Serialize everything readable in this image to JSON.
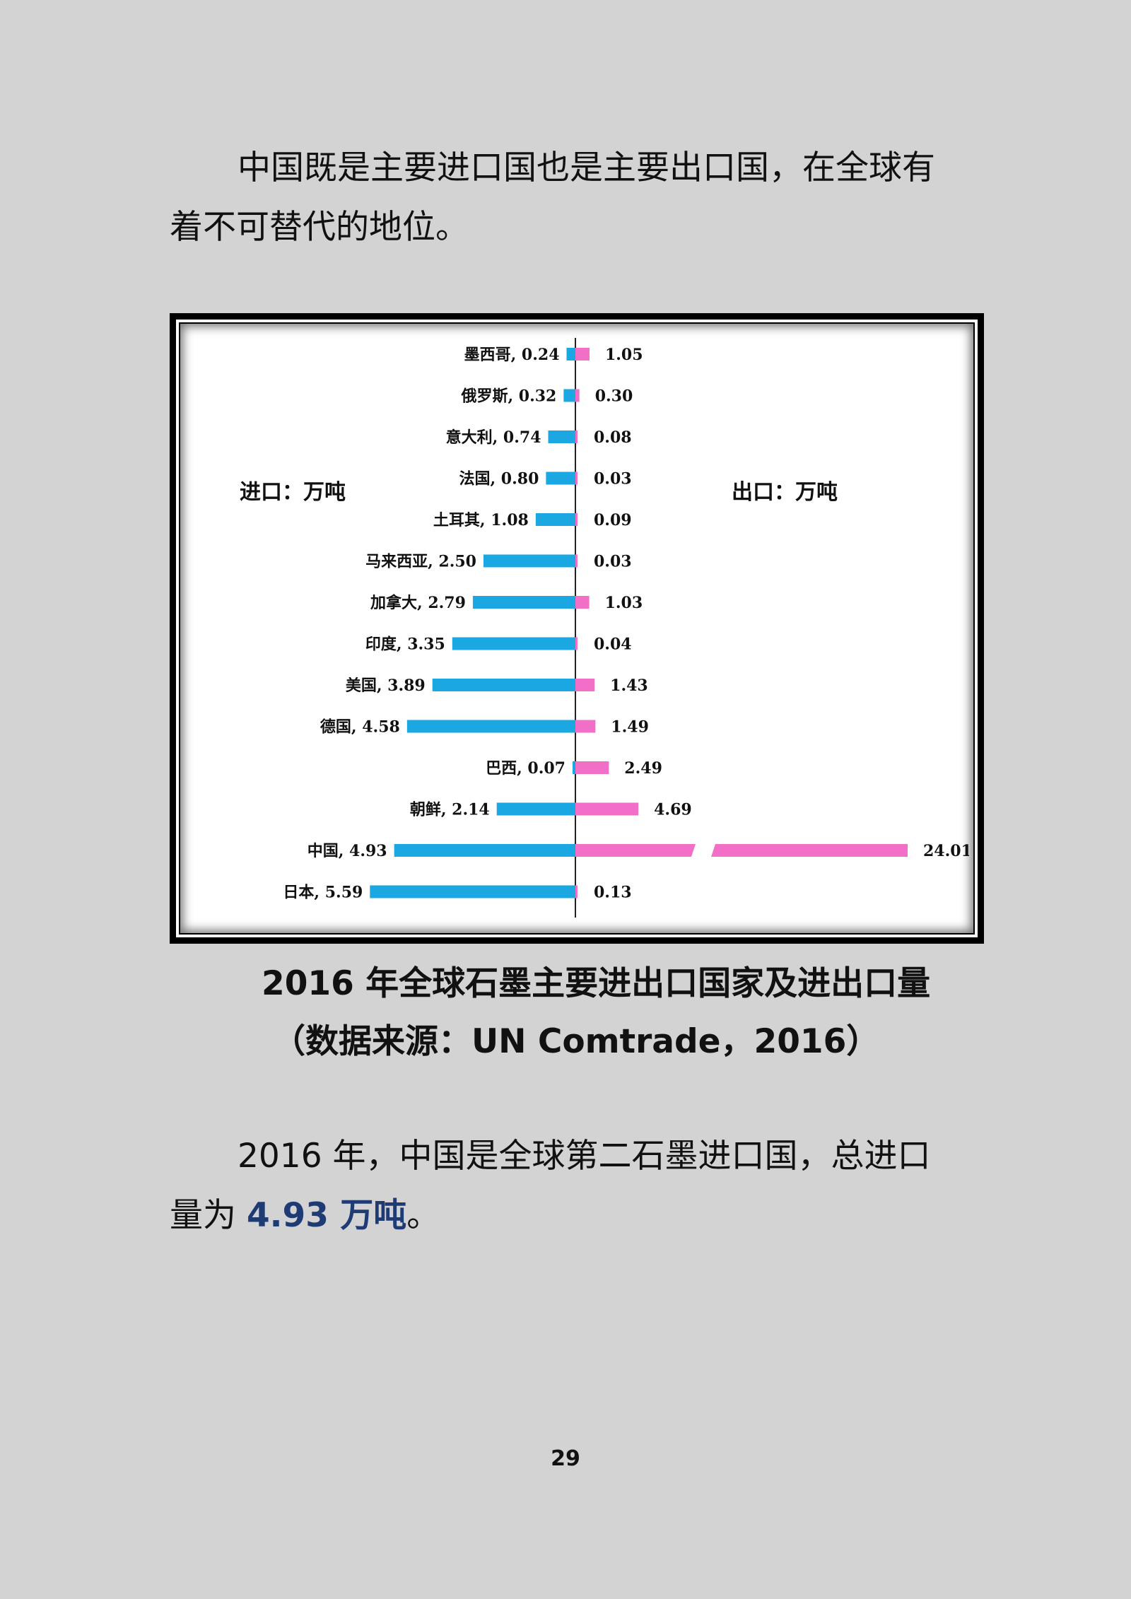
{
  "paragraphs": {
    "p1": "中国既是主要进口国也是主要出口国，在全球有着不可替代的地位。",
    "p2_before": "2016 年，中国是全球第二石墨进口国，总进口量为 ",
    "p2_highlight": "4.93 万吨",
    "p2_after": "。"
  },
  "chart_data": {
    "type": "bar",
    "orientation": "horizontal-diverging",
    "left_title": "进口：万吨",
    "right_title": "出口：万吨",
    "categories": [
      "墨西哥",
      "俄罗斯",
      "意大利",
      "法国",
      "土耳其",
      "马来西亚",
      "加拿大",
      "印度",
      "美国",
      "德国",
      "巴西",
      "朝鲜",
      "中国",
      "日本"
    ],
    "series": [
      {
        "name": "进口",
        "values": [
          0.24,
          0.32,
          0.74,
          0.8,
          1.08,
          2.5,
          2.79,
          3.35,
          3.89,
          4.58,
          0.07,
          2.14,
          4.93,
          5.59
        ]
      },
      {
        "name": "出口",
        "values": [
          1.05,
          0.3,
          0.08,
          0.03,
          0.09,
          0.03,
          1.03,
          0.04,
          1.43,
          1.49,
          2.49,
          4.69,
          24.01,
          0.13
        ]
      }
    ],
    "left_labels": [
      "墨西哥, 0.24",
      "俄罗斯, 0.32",
      "意大利, 0.74",
      "法国, 0.80",
      "土耳其, 1.08",
      "马来西亚, 2.50",
      "加拿大, 2.79",
      "印度, 3.35",
      "美国, 3.89",
      "德国, 4.58",
      "巴西, 0.07",
      "朝鲜, 2.14",
      "中国, 4.93",
      "日本, 5.59"
    ],
    "right_labels": [
      "1.05",
      "0.30",
      "0.08",
      "0.03",
      "0.09",
      "0.03",
      "1.03",
      "0.04",
      "1.43",
      "1.49",
      "2.49",
      "4.69",
      "24.01",
      "0.13"
    ],
    "colors": {
      "import": "#1aa7e2",
      "export": "#f26fc8"
    },
    "axis_break_on": "中国"
  },
  "caption": {
    "line1": "2016 年全球石墨主要进出口国家及进出口量",
    "line2": "（数据来源：UN Comtrade，2016）"
  },
  "page_number": "29"
}
